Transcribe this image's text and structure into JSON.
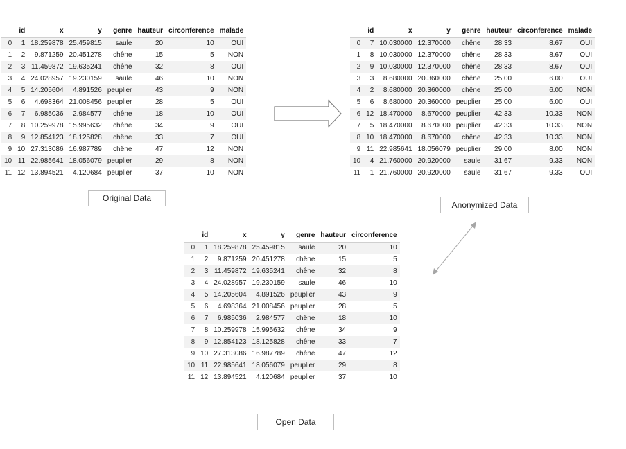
{
  "original": {
    "caption": "Original Data",
    "columns": [
      "",
      "id",
      "x",
      "y",
      "genre",
      "hauteur",
      "circonference",
      "malade"
    ],
    "rows": [
      [
        "0",
        "1",
        "18.259878",
        "25.459815",
        "saule",
        "20",
        "10",
        "OUI"
      ],
      [
        "1",
        "2",
        "9.871259",
        "20.451278",
        "chêne",
        "15",
        "5",
        "NON"
      ],
      [
        "2",
        "3",
        "11.459872",
        "19.635241",
        "chêne",
        "32",
        "8",
        "OUI"
      ],
      [
        "3",
        "4",
        "24.028957",
        "19.230159",
        "saule",
        "46",
        "10",
        "NON"
      ],
      [
        "4",
        "5",
        "14.205604",
        "4.891526",
        "peuplier",
        "43",
        "9",
        "NON"
      ],
      [
        "5",
        "6",
        "4.698364",
        "21.008456",
        "peuplier",
        "28",
        "5",
        "OUI"
      ],
      [
        "6",
        "7",
        "6.985036",
        "2.984577",
        "chêne",
        "18",
        "10",
        "OUI"
      ],
      [
        "7",
        "8",
        "10.259978",
        "15.995632",
        "chêne",
        "34",
        "9",
        "OUI"
      ],
      [
        "8",
        "9",
        "12.854123",
        "18.125828",
        "chêne",
        "33",
        "7",
        "OUI"
      ],
      [
        "9",
        "10",
        "27.313086",
        "16.987789",
        "chêne",
        "47",
        "12",
        "NON"
      ],
      [
        "10",
        "11",
        "22.985641",
        "18.056079",
        "peuplier",
        "29",
        "8",
        "NON"
      ],
      [
        "11",
        "12",
        "13.894521",
        "4.120684",
        "peuplier",
        "37",
        "10",
        "NON"
      ]
    ]
  },
  "anonymized": {
    "caption": "Anonymized Data",
    "columns": [
      "",
      "id",
      "x",
      "y",
      "genre",
      "hauteur",
      "circonference",
      "malade"
    ],
    "rows": [
      [
        "0",
        "7",
        "10.030000",
        "12.370000",
        "chêne",
        "28.33",
        "8.67",
        "OUI"
      ],
      [
        "1",
        "8",
        "10.030000",
        "12.370000",
        "chêne",
        "28.33",
        "8.67",
        "OUI"
      ],
      [
        "2",
        "9",
        "10.030000",
        "12.370000",
        "chêne",
        "28.33",
        "8.67",
        "OUI"
      ],
      [
        "3",
        "3",
        "8.680000",
        "20.360000",
        "chêne",
        "25.00",
        "6.00",
        "OUI"
      ],
      [
        "4",
        "2",
        "8.680000",
        "20.360000",
        "chêne",
        "25.00",
        "6.00",
        "NON"
      ],
      [
        "5",
        "6",
        "8.680000",
        "20.360000",
        "peuplier",
        "25.00",
        "6.00",
        "OUI"
      ],
      [
        "6",
        "12",
        "18.470000",
        "8.670000",
        "peuplier",
        "42.33",
        "10.33",
        "NON"
      ],
      [
        "7",
        "5",
        "18.470000",
        "8.670000",
        "peuplier",
        "42.33",
        "10.33",
        "NON"
      ],
      [
        "8",
        "10",
        "18.470000",
        "8.670000",
        "chêne",
        "42.33",
        "10.33",
        "NON"
      ],
      [
        "9",
        "11",
        "22.985641",
        "18.056079",
        "peuplier",
        "29.00",
        "8.00",
        "NON"
      ],
      [
        "10",
        "4",
        "21.760000",
        "20.920000",
        "saule",
        "31.67",
        "9.33",
        "NON"
      ],
      [
        "11",
        "1",
        "21.760000",
        "20.920000",
        "saule",
        "31.67",
        "9.33",
        "OUI"
      ]
    ]
  },
  "open": {
    "caption": "Open Data",
    "columns": [
      "",
      "id",
      "x",
      "y",
      "genre",
      "hauteur",
      "circonference"
    ],
    "rows": [
      [
        "0",
        "1",
        "18.259878",
        "25.459815",
        "saule",
        "20",
        "10"
      ],
      [
        "1",
        "2",
        "9.871259",
        "20.451278",
        "chêne",
        "15",
        "5"
      ],
      [
        "2",
        "3",
        "11.459872",
        "19.635241",
        "chêne",
        "32",
        "8"
      ],
      [
        "3",
        "4",
        "24.028957",
        "19.230159",
        "saule",
        "46",
        "10"
      ],
      [
        "4",
        "5",
        "14.205604",
        "4.891526",
        "peuplier",
        "43",
        "9"
      ],
      [
        "5",
        "6",
        "4.698364",
        "21.008456",
        "peuplier",
        "28",
        "5"
      ],
      [
        "6",
        "7",
        "6.985036",
        "2.984577",
        "chêne",
        "18",
        "10"
      ],
      [
        "7",
        "8",
        "10.259978",
        "15.995632",
        "chêne",
        "34",
        "9"
      ],
      [
        "8",
        "9",
        "12.854123",
        "18.125828",
        "chêne",
        "33",
        "7"
      ],
      [
        "9",
        "10",
        "27.313086",
        "16.987789",
        "chêne",
        "47",
        "12"
      ],
      [
        "10",
        "11",
        "22.985641",
        "18.056079",
        "peuplier",
        "29",
        "8"
      ],
      [
        "11",
        "12",
        "13.894521",
        "4.120684",
        "peuplier",
        "37",
        "10"
      ]
    ]
  },
  "connectors": {
    "transform_arrow": "right-arrow-icon",
    "link_arrow": "double-headed-arrow-icon"
  }
}
